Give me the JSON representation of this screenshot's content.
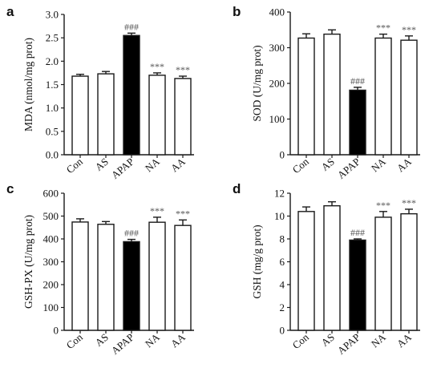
{
  "colors": {
    "axis": "#1a1a1a",
    "bar_open": "#ffffff",
    "bar_filled": "#000000",
    "annotation": "#555555"
  },
  "chart_data": [
    {
      "type": "bar",
      "panel_label": "a",
      "ylabel": "MDA (nmol/mg prot)",
      "ylim": [
        0,
        3.0
      ],
      "yticks": [
        "0.0",
        "0.5",
        "1.0",
        "1.5",
        "2.0",
        "2.5",
        "3.0"
      ],
      "categories": [
        "Con",
        "AS",
        "APAP",
        "NA",
        "AA"
      ],
      "values": [
        1.68,
        1.73,
        2.55,
        1.7,
        1.63
      ],
      "errors": [
        0.04,
        0.05,
        0.05,
        0.05,
        0.05
      ],
      "filled": [
        false,
        false,
        true,
        false,
        false
      ],
      "annotations": [
        "",
        "",
        "###",
        "***",
        "***"
      ]
    },
    {
      "type": "bar",
      "panel_label": "b",
      "ylabel": "SOD (U/mg prot)",
      "ylim": [
        0,
        400
      ],
      "yticks": [
        "0",
        "100",
        "200",
        "300",
        "400"
      ],
      "categories": [
        "Con",
        "AS",
        "APAP",
        "NA",
        "AA"
      ],
      "values": [
        327,
        338,
        181,
        327,
        321
      ],
      "errors": [
        12,
        12,
        8,
        11,
        12
      ],
      "filled": [
        false,
        false,
        true,
        false,
        false
      ],
      "annotations": [
        "",
        "",
        "###",
        "***",
        "***"
      ]
    },
    {
      "type": "bar",
      "panel_label": "c",
      "ylabel": "GSH-PX (U/mg prot)",
      "ylim": [
        0,
        600
      ],
      "yticks": [
        "0",
        "100",
        "200",
        "300",
        "400",
        "500",
        "600"
      ],
      "categories": [
        "Con",
        "AS",
        "APAP",
        "NA",
        "AA"
      ],
      "values": [
        474,
        464,
        388,
        473,
        459
      ],
      "errors": [
        14,
        12,
        10,
        22,
        24
      ],
      "filled": [
        false,
        false,
        true,
        false,
        false
      ],
      "annotations": [
        "",
        "",
        "###",
        "***",
        "***"
      ]
    },
    {
      "type": "bar",
      "panel_label": "d",
      "ylabel": "GSH (mg/g prot)",
      "ylim": [
        0,
        12
      ],
      "yticks": [
        "0",
        "2",
        "4",
        "6",
        "8",
        "10",
        "12"
      ],
      "categories": [
        "Con",
        "AS",
        "APAP",
        "NA",
        "AA"
      ],
      "values": [
        10.4,
        10.9,
        7.9,
        9.9,
        10.2
      ],
      "errors": [
        0.4,
        0.35,
        0.1,
        0.5,
        0.4
      ],
      "filled": [
        false,
        false,
        true,
        false,
        false
      ],
      "annotations": [
        "",
        "",
        "###",
        "***",
        "***"
      ]
    }
  ]
}
